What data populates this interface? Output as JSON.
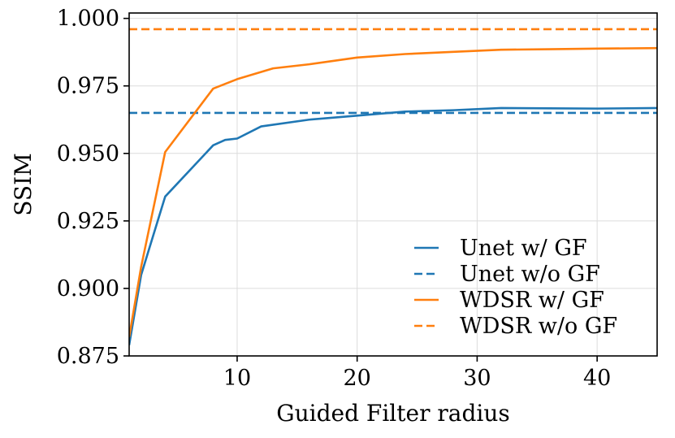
{
  "chart_data": {
    "type": "line",
    "title": "",
    "xlabel": "Guided Filter radius",
    "ylabel": "SSIM",
    "xlim": [
      1,
      45
    ],
    "ylim": [
      0.875,
      1.002
    ],
    "xticks": [
      10,
      20,
      30,
      40
    ],
    "yticks": [
      0.875,
      0.9,
      0.925,
      0.95,
      0.975,
      1.0
    ],
    "xtick_labels": [
      "10",
      "20",
      "30",
      "40"
    ],
    "ytick_labels": [
      "0.875",
      "0.900",
      "0.925",
      "0.950",
      "0.975",
      "1.000"
    ],
    "grid": true,
    "legend_position": "bottom-right",
    "series": [
      {
        "name": "Unet w/ GF",
        "style": "solid",
        "color": "#1f77b4",
        "x": [
          1,
          2,
          4,
          8,
          9,
          10,
          12,
          16,
          20,
          24,
          28,
          32,
          36,
          40,
          45
        ],
        "y": [
          0.879,
          0.905,
          0.934,
          0.953,
          0.955,
          0.9555,
          0.96,
          0.9625,
          0.964,
          0.9655,
          0.966,
          0.9668,
          0.9667,
          0.9666,
          0.9668
        ]
      },
      {
        "name": "Unet w/o GF",
        "style": "dashed",
        "color": "#1f77b4",
        "x": [
          1,
          45
        ],
        "y": [
          0.965,
          0.965
        ]
      },
      {
        "name": "WDSR w/ GF",
        "style": "solid",
        "color": "#ff7f0e",
        "x": [
          1,
          2,
          4,
          8,
          10,
          13,
          16,
          20,
          24,
          28,
          32,
          36,
          40,
          45
        ],
        "y": [
          0.882,
          0.908,
          0.9505,
          0.974,
          0.9775,
          0.9815,
          0.983,
          0.9855,
          0.9868,
          0.9876,
          0.9884,
          0.9886,
          0.9888,
          0.989
        ]
      },
      {
        "name": "WDSR w/o GF",
        "style": "dashed",
        "color": "#ff7f0e",
        "x": [
          1,
          45
        ],
        "y": [
          0.996,
          0.996
        ]
      }
    ]
  }
}
